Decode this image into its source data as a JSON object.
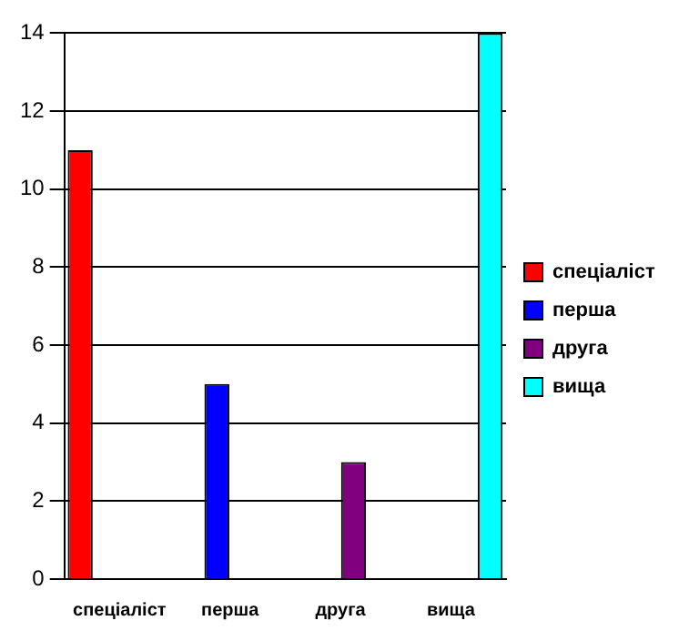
{
  "chart_data": {
    "type": "bar",
    "categories": [
      "спеціаліст",
      "перша",
      "друга",
      "вища"
    ],
    "series": [
      {
        "name": "спеціаліст",
        "color": "#ff0000",
        "values": [
          11,
          null,
          null,
          null
        ]
      },
      {
        "name": "перша",
        "color": "#0000ff",
        "values": [
          null,
          5,
          null,
          null
        ]
      },
      {
        "name": "друга",
        "color": "#800080",
        "values": [
          null,
          null,
          3,
          null
        ]
      },
      {
        "name": "вища",
        "color": "#00ffff",
        "values": [
          null,
          null,
          null,
          14
        ]
      }
    ],
    "ylim": [
      0,
      14
    ],
    "yticks": [
      0,
      2,
      4,
      6,
      8,
      10,
      12,
      14
    ],
    "grid": "y",
    "legend": "right"
  }
}
